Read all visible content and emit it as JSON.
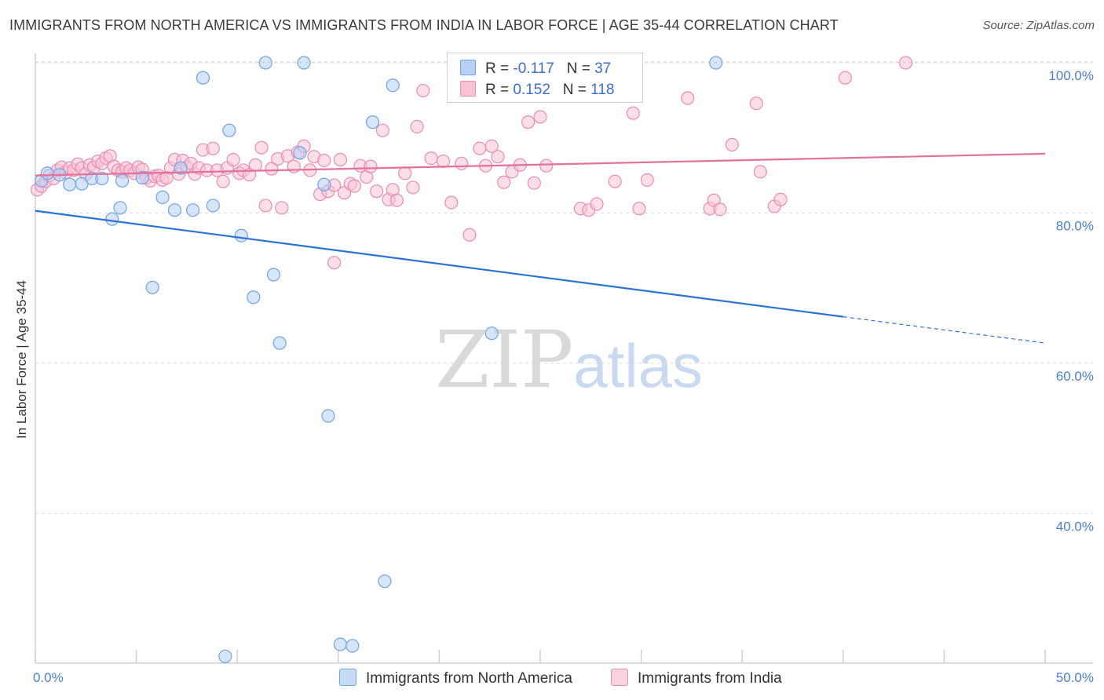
{
  "title": "IMMIGRANTS FROM NORTH AMERICA VS IMMIGRANTS FROM INDIA IN LABOR FORCE | AGE 35-44 CORRELATION CHART",
  "source": "Source: ZipAtlas.com",
  "watermark": {
    "part1": "ZIP",
    "part2": "atlas"
  },
  "colors": {
    "blue": "#6fa3e8",
    "blue_fill": "#b7d0f3",
    "blue_line": "#2a72d4",
    "pink": "#eb8db0",
    "pink_fill": "#f7c3d5",
    "pink_line": "#e4719a",
    "grid": "#dcdcdc",
    "tick_text": "#4a7fd1"
  },
  "legend": {
    "rows": [
      {
        "r_label": "R =",
        "r_value": "-0.117",
        "n_label": "N =",
        "n_value": "37"
      },
      {
        "r_label": "R =",
        "r_value": "0.152",
        "n_label": "N =",
        "n_value": "118"
      }
    ]
  },
  "chart_data": {
    "type": "scatter",
    "title": "IMMIGRANTS FROM NORTH AMERICA VS IMMIGRANTS FROM INDIA IN LABOR FORCE | AGE 35-44 CORRELATION CHART",
    "xlabel": "",
    "ylabel": "In Labor Force | Age 35-44",
    "xlim": [
      0,
      50
    ],
    "ylim": [
      20,
      102
    ],
    "x_tick_labels": [
      "0.0%",
      "50.0%"
    ],
    "y_ticks": [
      40,
      60,
      80,
      100
    ],
    "y_tick_labels": [
      "40.0%",
      "60.0%",
      "80.0%",
      "100.0%"
    ],
    "grid": true,
    "legend_position": "bottom",
    "series": [
      {
        "name": "Immigrants from North America",
        "r": -0.117,
        "n": 37,
        "trend": {
          "x0": 0,
          "y0": 80.3,
          "x1": 40,
          "y1": 66.2,
          "dashed_to_x": 50,
          "dashed_to_y": 62.7
        },
        "points": [
          [
            0.3,
            84.3
          ],
          [
            0.6,
            85.3
          ],
          [
            1.2,
            85.1
          ],
          [
            1.7,
            83.8
          ],
          [
            2.3,
            83.9
          ],
          [
            2.8,
            84.6
          ],
          [
            3.3,
            84.6
          ],
          [
            3.8,
            79.2
          ],
          [
            4.2,
            80.7
          ],
          [
            4.3,
            84.3
          ],
          [
            5.3,
            84.7
          ],
          [
            5.8,
            70.1
          ],
          [
            6.3,
            82.1
          ],
          [
            6.9,
            80.4
          ],
          [
            7.2,
            86.0
          ],
          [
            7.8,
            80.4
          ],
          [
            8.3,
            98.0
          ],
          [
            8.8,
            81.0
          ],
          [
            9.6,
            91.0
          ],
          [
            10.2,
            77.0
          ],
          [
            10.8,
            68.8
          ],
          [
            11.4,
            100.0
          ],
          [
            11.8,
            71.8
          ],
          [
            12.1,
            62.7
          ],
          [
            13.1,
            88.0
          ],
          [
            13.3,
            100.0
          ],
          [
            14.3,
            83.8
          ],
          [
            14.5,
            53.0
          ],
          [
            15.1,
            22.6
          ],
          [
            15.7,
            22.4
          ],
          [
            16.7,
            92.1
          ],
          [
            17.3,
            31.0
          ],
          [
            17.7,
            97.0
          ],
          [
            20.7,
            100.0
          ],
          [
            22.6,
            64.0
          ],
          [
            33.7,
            100.0
          ],
          [
            9.4,
            21.0
          ]
        ]
      },
      {
        "name": "Immigrants from India",
        "r": 0.152,
        "n": 118,
        "trend": {
          "x0": 0,
          "y0": 85.0,
          "x1": 50,
          "y1": 87.9
        },
        "points": [
          [
            0.1,
            83.1
          ],
          [
            0.3,
            83.6
          ],
          [
            0.5,
            84.2
          ],
          [
            0.7,
            85.0
          ],
          [
            0.9,
            84.6
          ],
          [
            1.1,
            85.7
          ],
          [
            1.3,
            86.1
          ],
          [
            1.5,
            85.4
          ],
          [
            1.7,
            86.0
          ],
          [
            1.9,
            85.7
          ],
          [
            2.1,
            86.5
          ],
          [
            2.3,
            86.0
          ],
          [
            2.5,
            85.2
          ],
          [
            2.7,
            86.4
          ],
          [
            2.9,
            86.1
          ],
          [
            3.1,
            86.9
          ],
          [
            3.3,
            86.6
          ],
          [
            3.5,
            87.3
          ],
          [
            3.7,
            87.6
          ],
          [
            3.9,
            86.2
          ],
          [
            4.1,
            85.7
          ],
          [
            4.3,
            85.5
          ],
          [
            4.5,
            86.0
          ],
          [
            4.7,
            85.7
          ],
          [
            4.9,
            85.3
          ],
          [
            5.1,
            86.1
          ],
          [
            5.3,
            85.8
          ],
          [
            5.5,
            84.7
          ],
          [
            5.7,
            84.3
          ],
          [
            5.9,
            84.9
          ],
          [
            6.1,
            85.0
          ],
          [
            6.3,
            84.4
          ],
          [
            6.5,
            84.7
          ],
          [
            6.7,
            86.0
          ],
          [
            6.9,
            87.1
          ],
          [
            7.1,
            85.2
          ],
          [
            7.3,
            87.0
          ],
          [
            7.5,
            86.1
          ],
          [
            7.7,
            86.6
          ],
          [
            7.9,
            85.2
          ],
          [
            8.1,
            86.0
          ],
          [
            8.3,
            88.4
          ],
          [
            8.5,
            85.7
          ],
          [
            8.8,
            88.6
          ],
          [
            9.0,
            85.7
          ],
          [
            9.3,
            84.2
          ],
          [
            9.5,
            86.0
          ],
          [
            9.8,
            87.1
          ],
          [
            10.1,
            85.3
          ],
          [
            10.3,
            85.7
          ],
          [
            10.6,
            85.1
          ],
          [
            10.9,
            86.4
          ],
          [
            11.2,
            88.7
          ],
          [
            11.4,
            81.0
          ],
          [
            11.7,
            85.9
          ],
          [
            12.0,
            87.2
          ],
          [
            12.2,
            80.7
          ],
          [
            12.5,
            87.6
          ],
          [
            12.8,
            86.2
          ],
          [
            13.0,
            88.1
          ],
          [
            13.3,
            88.9
          ],
          [
            13.6,
            85.7
          ],
          [
            13.8,
            87.5
          ],
          [
            14.1,
            82.5
          ],
          [
            14.3,
            87.0
          ],
          [
            14.5,
            82.9
          ],
          [
            14.8,
            83.7
          ],
          [
            15.1,
            87.1
          ],
          [
            15.3,
            82.7
          ],
          [
            15.6,
            83.9
          ],
          [
            15.8,
            83.6
          ],
          [
            16.1,
            86.3
          ],
          [
            16.4,
            84.8
          ],
          [
            16.6,
            86.2
          ],
          [
            16.9,
            82.9
          ],
          [
            17.2,
            91.0
          ],
          [
            17.5,
            81.8
          ],
          [
            17.7,
            83.1
          ],
          [
            17.9,
            81.7
          ],
          [
            18.3,
            85.3
          ],
          [
            18.7,
            83.4
          ],
          [
            18.9,
            91.5
          ],
          [
            19.2,
            96.3
          ],
          [
            19.6,
            87.3
          ],
          [
            20.2,
            86.9
          ],
          [
            20.6,
            81.4
          ],
          [
            21.1,
            86.6
          ],
          [
            21.5,
            77.1
          ],
          [
            22.0,
            88.6
          ],
          [
            22.3,
            86.3
          ],
          [
            22.6,
            88.9
          ],
          [
            22.9,
            87.5
          ],
          [
            23.2,
            84.1
          ],
          [
            23.6,
            85.5
          ],
          [
            24.0,
            86.4
          ],
          [
            24.4,
            92.1
          ],
          [
            24.7,
            84.0
          ],
          [
            25.0,
            92.8
          ],
          [
            25.3,
            86.3
          ],
          [
            27.0,
            80.6
          ],
          [
            27.4,
            80.4
          ],
          [
            27.8,
            81.2
          ],
          [
            28.7,
            84.2
          ],
          [
            29.6,
            93.3
          ],
          [
            29.9,
            80.6
          ],
          [
            30.3,
            84.4
          ],
          [
            32.3,
            95.3
          ],
          [
            33.4,
            80.6
          ],
          [
            33.6,
            81.7
          ],
          [
            33.9,
            80.5
          ],
          [
            34.5,
            89.1
          ],
          [
            35.7,
            94.6
          ],
          [
            35.9,
            85.5
          ],
          [
            36.6,
            80.9
          ],
          [
            36.9,
            81.8
          ],
          [
            40.1,
            98.0
          ],
          [
            43.1,
            100.0
          ],
          [
            14.8,
            73.4
          ]
        ]
      }
    ]
  }
}
